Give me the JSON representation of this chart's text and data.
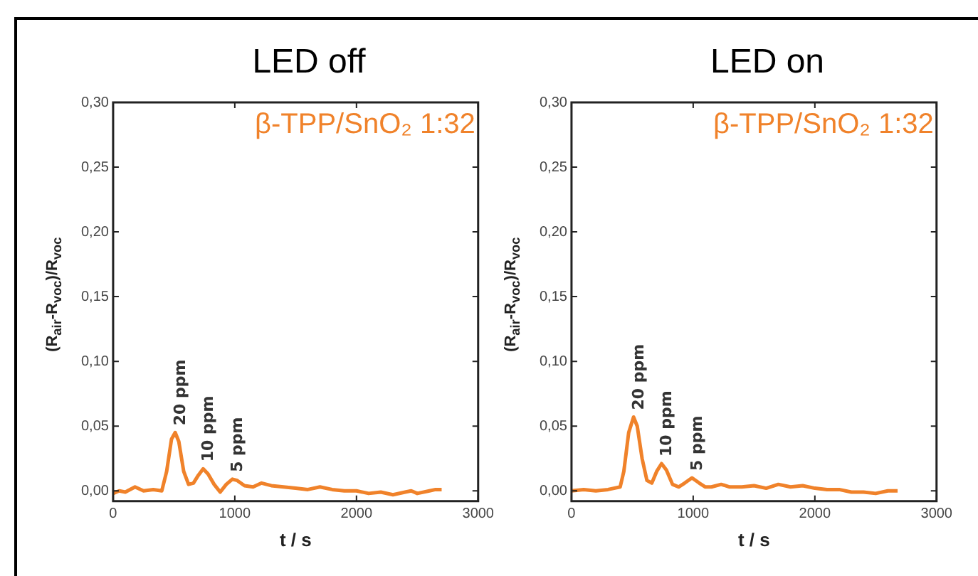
{
  "chart_data": [
    {
      "type": "line",
      "title": "LED off",
      "xlabel": "t / s",
      "ylabel": "(R$_{air}$-R$_{voc}$)/R$_{voc}$",
      "xlim": [
        0,
        3000
      ],
      "xticks": [
        0,
        1000,
        2000,
        3000
      ],
      "ylim": [
        -0.008,
        0.3
      ],
      "yticks": [
        {
          "value": 0,
          "label": "0,00"
        },
        {
          "value": 0.05,
          "label": "0,05"
        },
        {
          "value": 0.1,
          "label": "0,10"
        },
        {
          "value": 0.15,
          "label": "0,15"
        },
        {
          "value": 0.2,
          "label": "0,20"
        },
        {
          "value": 0.25,
          "label": "0,25"
        },
        {
          "value": 0.3,
          "label": "0,30"
        }
      ],
      "grid": false,
      "legend": false,
      "marker": "none",
      "x": [
        0,
        50,
        100,
        180,
        250,
        330,
        400,
        440,
        480,
        510,
        540,
        580,
        620,
        660,
        700,
        740,
        780,
        830,
        880,
        930,
        980,
        1020,
        1080,
        1150,
        1220,
        1300,
        1400,
        1500,
        1600,
        1700,
        1800,
        1900,
        2000,
        2100,
        2200,
        2300,
        2400,
        2450,
        2500,
        2600,
        2650,
        2700
      ],
      "series": [
        {
          "name": "β-TPP/SnO₂ 1:32",
          "color": "#f0822a",
          "values": [
            -0.002,
            0.0,
            -0.001,
            0.003,
            0.0,
            0.001,
            0.0,
            0.015,
            0.04,
            0.045,
            0.038,
            0.015,
            0.005,
            0.006,
            0.012,
            0.017,
            0.013,
            0.005,
            -0.001,
            0.005,
            0.009,
            0.008,
            0.004,
            0.003,
            0.006,
            0.004,
            0.003,
            0.002,
            0.001,
            0.003,
            0.001,
            0.0,
            0.0,
            -0.002,
            -0.001,
            -0.003,
            -0.001,
            0.0,
            -0.002,
            0.0,
            0.001,
            0.001
          ]
        }
      ],
      "annotations": [
        {
          "text": "20 ppm",
          "x": 510,
          "y": 0.045
        },
        {
          "text": "10 ppm",
          "x": 740,
          "y": 0.017
        },
        {
          "text": "5 ppm",
          "x": 980,
          "y": 0.009
        }
      ]
    },
    {
      "type": "line",
      "title": "LED on",
      "xlabel": "t / s",
      "ylabel": "(R$_{air}$-R$_{voc}$)/R$_{voc}$",
      "xlim": [
        0,
        3000
      ],
      "xticks": [
        0,
        1000,
        2000,
        3000
      ],
      "ylim": [
        -0.008,
        0.3
      ],
      "yticks": [
        {
          "value": 0,
          "label": "0,00"
        },
        {
          "value": 0.05,
          "label": "0,05"
        },
        {
          "value": 0.1,
          "label": "0,10"
        },
        {
          "value": 0.15,
          "label": "0,15"
        },
        {
          "value": 0.2,
          "label": "0,20"
        },
        {
          "value": 0.25,
          "label": "0,25"
        },
        {
          "value": 0.3,
          "label": "0,30"
        }
      ],
      "grid": false,
      "legend": false,
      "marker": "none",
      "x": [
        0,
        100,
        200,
        300,
        400,
        430,
        470,
        510,
        540,
        580,
        620,
        660,
        700,
        740,
        780,
        830,
        880,
        930,
        990,
        1050,
        1100,
        1150,
        1230,
        1300,
        1400,
        1500,
        1600,
        1700,
        1800,
        1900,
        2000,
        2100,
        2200,
        2300,
        2400,
        2500,
        2600,
        2680
      ],
      "series": [
        {
          "name": "β-TPP/SnO₂ 1:32",
          "color": "#f0822a",
          "values": [
            0.0,
            0.001,
            0.0,
            0.001,
            0.003,
            0.015,
            0.045,
            0.057,
            0.05,
            0.025,
            0.008,
            0.006,
            0.015,
            0.021,
            0.016,
            0.005,
            0.003,
            0.006,
            0.01,
            0.006,
            0.003,
            0.003,
            0.005,
            0.003,
            0.003,
            0.004,
            0.002,
            0.005,
            0.003,
            0.004,
            0.002,
            0.001,
            0.001,
            -0.001,
            -0.001,
            -0.002,
            0.0,
            0.0
          ]
        }
      ],
      "annotations": [
        {
          "text": "20 ppm",
          "x": 510,
          "y": 0.057
        },
        {
          "text": "10 ppm",
          "x": 740,
          "y": 0.021
        },
        {
          "text": "5 ppm",
          "x": 990,
          "y": 0.01
        }
      ]
    }
  ]
}
